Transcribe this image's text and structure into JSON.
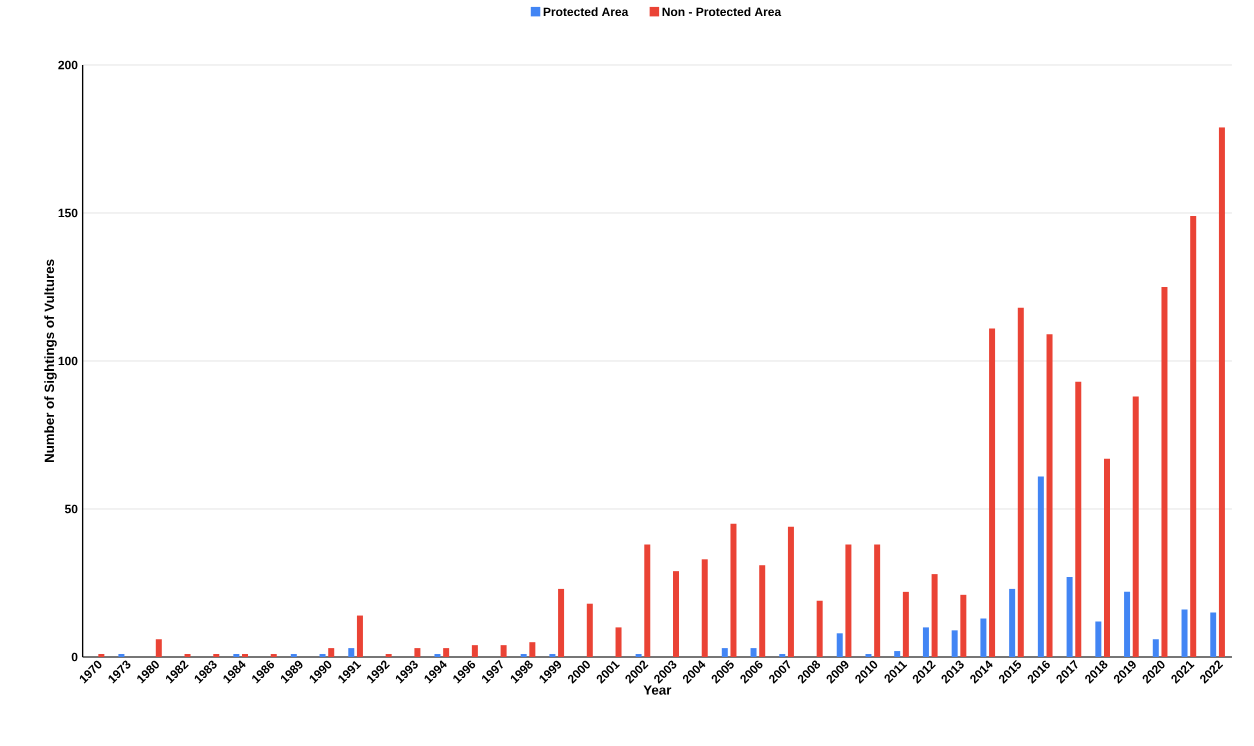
{
  "chart_data": {
    "type": "bar",
    "xlabel": "Year",
    "ylabel": "Number of Sightings of Vultures",
    "categories": [
      "1970",
      "1973",
      "1980",
      "1982",
      "1983",
      "1984",
      "1986",
      "1989",
      "1990",
      "1991",
      "1992",
      "1993",
      "1994",
      "1996",
      "1997",
      "1998",
      "1999",
      "2000",
      "2001",
      "2002",
      "2003",
      "2004",
      "2005",
      "2006",
      "2007",
      "2008",
      "2009",
      "2010",
      "2011",
      "2012",
      "2013",
      "2014",
      "2015",
      "2016",
      "2017",
      "2018",
      "2019",
      "2020",
      "2021",
      "2022"
    ],
    "series": [
      {
        "name": "Protected Area",
        "color": "#4285f4",
        "values": [
          0,
          1,
          0,
          0,
          0,
          1,
          0,
          1,
          1,
          3,
          0,
          0,
          1,
          0,
          0,
          1,
          1,
          0,
          0,
          1,
          0,
          0,
          3,
          3,
          1,
          0,
          8,
          1,
          2,
          10,
          9,
          13,
          23,
          61,
          27,
          12,
          22,
          6,
          16,
          15
        ]
      },
      {
        "name": "Non - Protected Area",
        "color": "#ea4335",
        "values": [
          1,
          0,
          6,
          1,
          1,
          1,
          1,
          0,
          3,
          14,
          1,
          3,
          3,
          4,
          4,
          5,
          23,
          18,
          10,
          38,
          29,
          33,
          45,
          31,
          44,
          19,
          38,
          38,
          22,
          28,
          21,
          111,
          118,
          109,
          93,
          67,
          88,
          125,
          149,
          179
        ]
      }
    ],
    "ylim": [
      0,
      200
    ],
    "yticks": [
      0,
      50,
      100,
      150,
      200
    ],
    "grid": "y",
    "legend": "top"
  }
}
